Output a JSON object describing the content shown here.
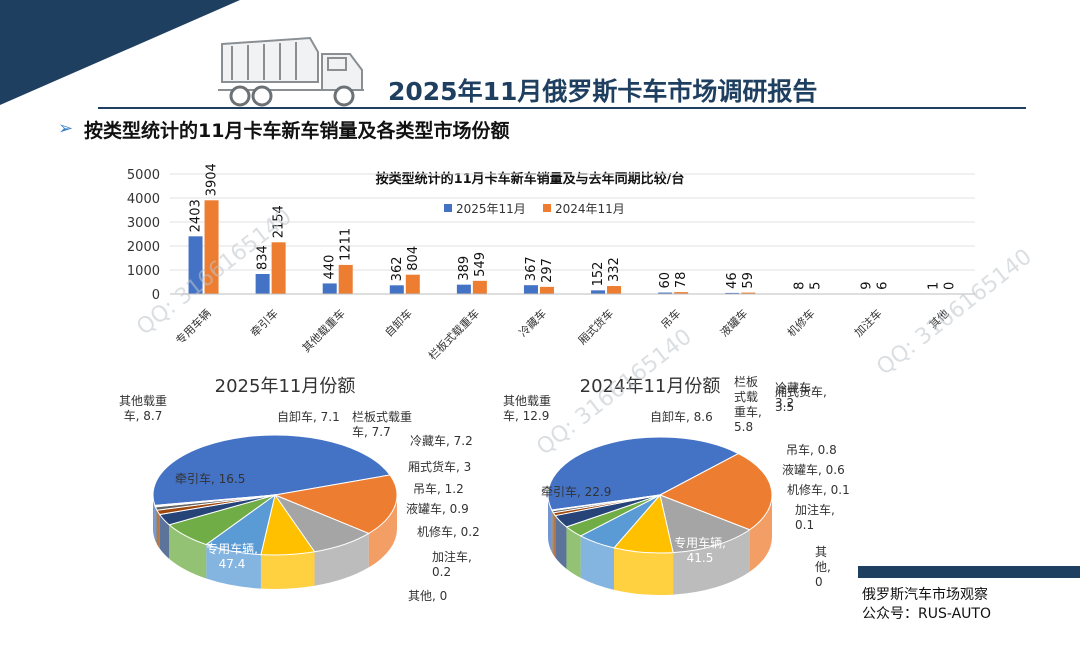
{
  "header": {
    "title": "2025年11月俄罗斯卡车市场调研报告",
    "section_title": "按类型统计的11月卡车新车销量及各类型市场份额"
  },
  "footer": {
    "line1": "俄罗斯汽车市场观察",
    "line2": "公众号：RUS-AUTO"
  },
  "watermark": "QQ: 3166165140",
  "colors": {
    "navy": "#1f3f60",
    "series_2025": "#4472c4",
    "series_2024": "#ed7d31"
  },
  "chart_data": [
    {
      "type": "bar",
      "title": "按类型统计的11月卡车新车销量及与去年同期比较/台",
      "categories": [
        "专用车辆",
        "牵引车",
        "其他载重车",
        "自卸车",
        "栏板式载重车",
        "冷藏车",
        "厢式货车",
        "吊车",
        "液罐车",
        "机修车",
        "加注车",
        "其他"
      ],
      "series": [
        {
          "name": "2025年11月",
          "values": [
            2403,
            834,
            440,
            362,
            389,
            367,
            152,
            60,
            46,
            8,
            9,
            1
          ]
        },
        {
          "name": "2024年11月",
          "values": [
            3904,
            2154,
            1211,
            804,
            549,
            297,
            332,
            78,
            59,
            5,
            6,
            0
          ]
        }
      ],
      "ylim": [
        0,
        5000
      ],
      "yticks": [
        0,
        1000,
        2000,
        3000,
        4000,
        5000
      ],
      "legend": "top-center"
    },
    {
      "type": "pie",
      "title": "2025年11月份额",
      "labels": [
        "专用车辆",
        "牵引车",
        "其他载重车",
        "自卸车",
        "栏板式载重车",
        "冷藏车",
        "厢式货车",
        "吊车",
        "液罐车",
        "机修车",
        "加注车",
        "其他"
      ],
      "values": [
        47.4,
        16.5,
        8.7,
        7.1,
        7.7,
        7.2,
        3,
        1.2,
        0.9,
        0.2,
        0.2,
        0
      ],
      "label_texts": [
        "专用车辆, 47.4",
        "牵引车, 16.5",
        "其他载重车, 8.7",
        "自卸车, 7.1",
        "栏板式载重车, 7.7",
        "冷藏车, 7.2",
        "厢式货车, 3",
        "吊车, 1.2",
        "液罐车, 0.9",
        "机修车, 0.2",
        "加注车, 0.2",
        "其他, 0"
      ]
    },
    {
      "type": "pie",
      "title": "2024年11月份额",
      "labels": [
        "专用车辆",
        "牵引车",
        "其他载重车",
        "自卸车",
        "栏板式载重车",
        "冷藏车",
        "厢式货车",
        "吊车",
        "液罐车",
        "机修车",
        "加注车",
        "其他"
      ],
      "values": [
        41.5,
        22.9,
        12.9,
        8.6,
        5.8,
        3.2,
        3.5,
        0.8,
        0.6,
        0.1,
        0.1,
        0
      ],
      "label_texts": [
        "专用车辆, 41.5",
        "牵引车, 22.9",
        "其他载重车, 12.9",
        "自卸车, 8.6",
        "栏板式载重车, 5.8",
        "冷藏车, 3.2",
        "厢式货车, 3.5",
        "吊车, 0.8",
        "液罐车, 0.6",
        "机修车, 0.1",
        "加注车, 0.1",
        "其他, 0"
      ]
    }
  ]
}
